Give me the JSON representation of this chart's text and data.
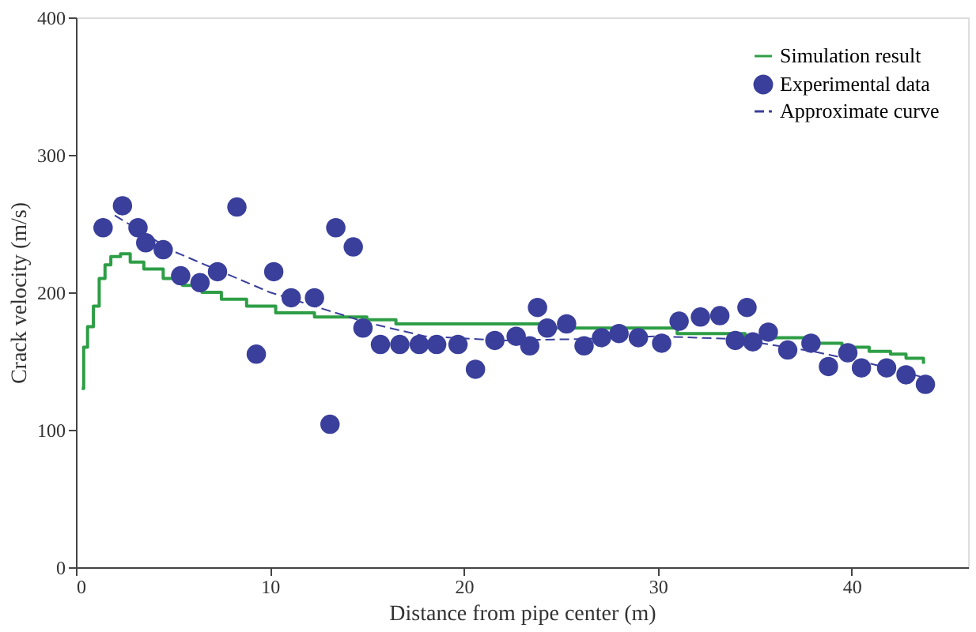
{
  "chart_data": {
    "type": "scatter",
    "xlabel": "Distance from pipe center (m)",
    "ylabel": "Crack velocity (m/s)",
    "xlim": [
      0,
      46
    ],
    "ylim": [
      0,
      400
    ],
    "xticks": [
      0,
      10,
      20,
      30,
      40
    ],
    "yticks": [
      0,
      100,
      200,
      300,
      400
    ],
    "grid": false,
    "legend": "top right",
    "series": [
      {
        "name": "Simulation result",
        "type": "step",
        "color": "#2e9e46",
        "line_style": "solid",
        "x": [
          0.3,
          0.4,
          0.6,
          0.9,
          1.2,
          1.5,
          1.8,
          2.3,
          2.8,
          3.5,
          4.5,
          5.5,
          6.5,
          7.5,
          8.8,
          10.3,
          12.3,
          15,
          16.5,
          24,
          31,
          34.5,
          37.6,
          39.5,
          40.9,
          42,
          42.8,
          43.7
        ],
        "values": [
          130,
          160,
          175,
          190,
          210,
          220,
          226,
          228,
          222,
          217,
          210,
          205,
          200,
          195,
          190,
          185,
          182,
          180,
          177,
          174,
          170,
          167,
          163,
          160,
          157,
          155,
          152,
          148
        ]
      },
      {
        "name": "Experimental data",
        "type": "scatter",
        "marker": "circle",
        "color": "#3a3f9b",
        "x": [
          1.4,
          2.4,
          3.2,
          3.6,
          4.5,
          5.4,
          6.4,
          7.3,
          8.3,
          9.3,
          10.2,
          11.1,
          12.3,
          13.1,
          13.4,
          14.3,
          14.8,
          15.7,
          16.7,
          17.7,
          18.6,
          19.7,
          20.6,
          21.6,
          22.7,
          23.4,
          23.8,
          24.3,
          25.3,
          26.2,
          27.1,
          28.0,
          29.0,
          30.2,
          31.1,
          32.2,
          33.2,
          34.0,
          34.6,
          34.9,
          35.7,
          36.7,
          37.9,
          38.8,
          39.8,
          40.5,
          41.8,
          42.8,
          43.8
        ],
        "values": [
          247,
          263,
          247,
          236,
          231,
          212,
          207,
          215,
          262,
          155,
          215,
          196,
          196,
          104,
          247,
          233,
          174,
          162,
          162,
          162,
          162,
          162,
          144,
          165,
          168,
          161,
          189,
          174,
          177,
          161,
          167,
          170,
          167,
          163,
          179,
          182,
          183,
          165,
          189,
          164,
          171,
          158,
          163,
          146,
          156,
          145,
          145,
          140,
          133
        ]
      },
      {
        "name": "Approximate curve",
        "type": "line",
        "color": "#3a3f9b",
        "line_style": "dashed",
        "x": [
          2,
          5,
          10,
          15,
          18,
          22,
          26,
          30,
          34,
          38,
          41,
          44
        ],
        "values": [
          256,
          230,
          200,
          178,
          168,
          165,
          166,
          168,
          166,
          157,
          148,
          137
        ]
      }
    ]
  }
}
